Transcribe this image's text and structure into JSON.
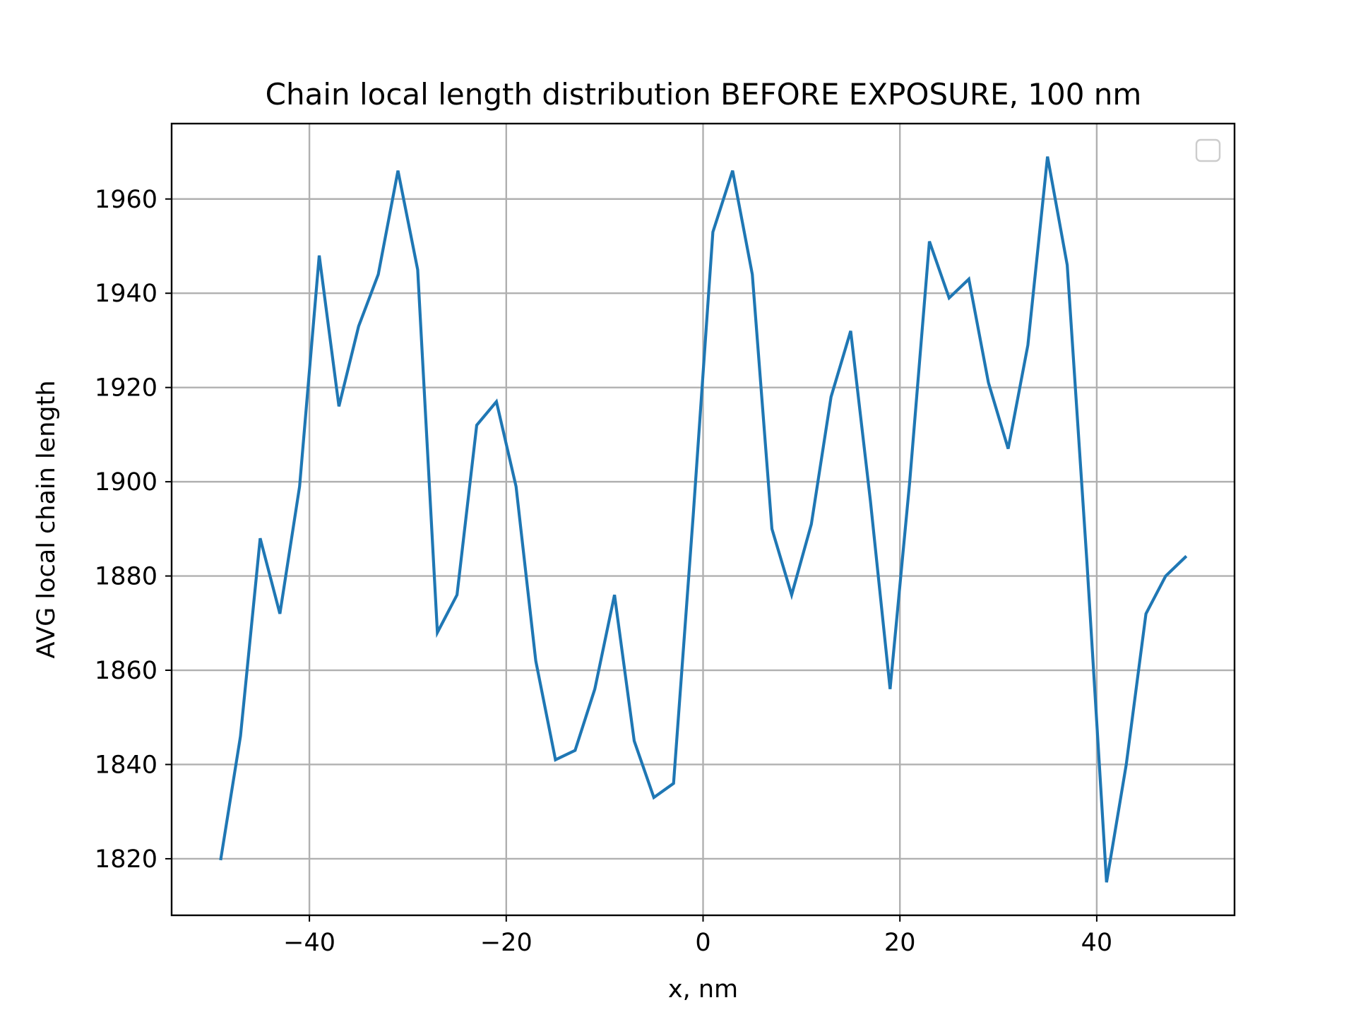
{
  "chart_data": {
    "type": "line",
    "title": "Chain local length distribution BEFORE EXPOSURE, 100 nm",
    "xlabel": "x, nm",
    "ylabel": "AVG local chain length",
    "xlim": [
      -54,
      54
    ],
    "ylim": [
      1808,
      1976
    ],
    "x_ticks": [
      -40,
      -20,
      0,
      20,
      40
    ],
    "x_tick_labels": [
      "−40",
      "−20",
      "0",
      "20",
      "40"
    ],
    "y_ticks": [
      1820,
      1840,
      1860,
      1880,
      1900,
      1920,
      1940,
      1960
    ],
    "y_tick_labels": [
      "1820",
      "1840",
      "1860",
      "1880",
      "1900",
      "1920",
      "1940",
      "1960"
    ],
    "grid": true,
    "legend": {
      "placement": "upper right",
      "entries": []
    },
    "series": [
      {
        "color": "#1f77b4",
        "x": [
          -49,
          -47,
          -45,
          -43,
          -41,
          -39,
          -37,
          -35,
          -33,
          -31,
          -29,
          -27,
          -25,
          -23,
          -21,
          -19,
          -17,
          -15,
          -13,
          -11,
          -9,
          -7,
          -5,
          -3,
          -1,
          1,
          3,
          5,
          7,
          9,
          11,
          13,
          15,
          17,
          19,
          21,
          23,
          25,
          27,
          29,
          31,
          33,
          35,
          37,
          39,
          41,
          43,
          45,
          47,
          49
        ],
        "y": [
          1820,
          1846,
          1888,
          1872,
          1899,
          1948,
          1916,
          1933,
          1944,
          1966,
          1945,
          1868,
          1876,
          1912,
          1917,
          1899,
          1862,
          1841,
          1843,
          1856,
          1876,
          1845,
          1833,
          1836,
          1893,
          1953,
          1966,
          1944,
          1890,
          1876,
          1891,
          1918,
          1932,
          1896,
          1856,
          1900,
          1951,
          1939,
          1943,
          1921,
          1907,
          1929,
          1969,
          1946,
          1883,
          1815,
          1840,
          1872,
          1880,
          1884
        ]
      }
    ]
  }
}
